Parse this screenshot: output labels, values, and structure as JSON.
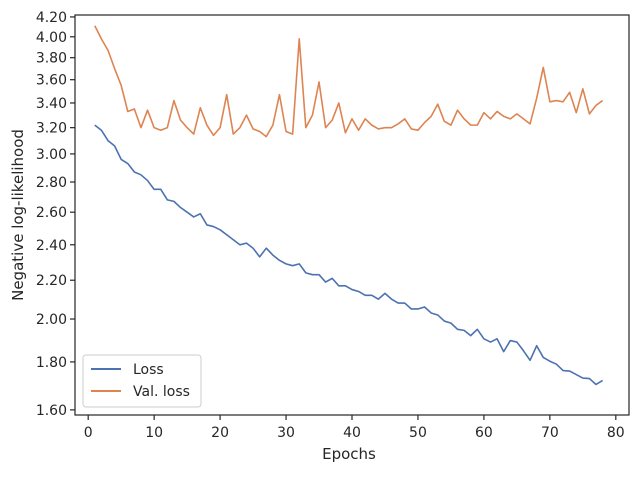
{
  "chart_data": {
    "type": "line",
    "xlabel": "Epochs",
    "ylabel": "Negative log-likelihood",
    "xlim": [
      -2,
      82
    ],
    "ylim": [
      1.58,
      4.22
    ],
    "y_scale": "log",
    "grid": false,
    "legend_position": "lower-left",
    "x_ticks": [
      0,
      10,
      20,
      30,
      40,
      50,
      60,
      70,
      80
    ],
    "x_tick_labels": [
      "0",
      "10",
      "20",
      "30",
      "40",
      "50",
      "60",
      "70",
      "80"
    ],
    "y_ticks": [
      1.6,
      1.8,
      2.0,
      2.2,
      2.4,
      2.6,
      2.8,
      3.0,
      3.2,
      3.4,
      3.6,
      3.8,
      4.0,
      4.2
    ],
    "y_tick_labels": [
      "1.60",
      "1.80",
      "2.00",
      "2.20",
      "2.40",
      "2.60",
      "2.80",
      "3.00",
      "3.20",
      "3.40",
      "3.60",
      "3.80",
      "4.00",
      "4.20"
    ],
    "x": [
      1,
      2,
      3,
      4,
      5,
      6,
      7,
      8,
      9,
      10,
      11,
      12,
      13,
      14,
      15,
      16,
      17,
      18,
      19,
      20,
      21,
      22,
      23,
      24,
      25,
      26,
      27,
      28,
      29,
      30,
      31,
      32,
      33,
      34,
      35,
      36,
      37,
      38,
      39,
      40,
      41,
      42,
      43,
      44,
      45,
      46,
      47,
      48,
      49,
      50,
      51,
      52,
      53,
      54,
      55,
      56,
      57,
      58,
      59,
      60,
      61,
      62,
      63,
      64,
      65,
      66,
      67,
      68,
      69,
      70,
      71,
      72,
      73,
      74,
      75,
      76,
      77,
      78
    ],
    "series": [
      {
        "name": "Loss",
        "color": "#4c72b0",
        "values": [
          3.22,
          3.18,
          3.1,
          3.06,
          2.96,
          2.93,
          2.87,
          2.85,
          2.81,
          2.75,
          2.75,
          2.68,
          2.67,
          2.63,
          2.6,
          2.57,
          2.59,
          2.52,
          2.51,
          2.49,
          2.46,
          2.43,
          2.4,
          2.41,
          2.38,
          2.33,
          2.38,
          2.34,
          2.31,
          2.29,
          2.28,
          2.29,
          2.24,
          2.23,
          2.23,
          2.19,
          2.21,
          2.17,
          2.17,
          2.15,
          2.14,
          2.12,
          2.12,
          2.1,
          2.13,
          2.1,
          2.08,
          2.08,
          2.05,
          2.05,
          2.06,
          2.03,
          2.02,
          1.99,
          1.98,
          1.95,
          1.945,
          1.92,
          1.95,
          1.905,
          1.89,
          1.905,
          1.846,
          1.897,
          1.89,
          1.85,
          1.807,
          1.873,
          1.82,
          1.803,
          1.79,
          1.762,
          1.76,
          1.745,
          1.73,
          1.728,
          1.703,
          1.72
        ]
      },
      {
        "name": "Val. loss",
        "color": "#dd8452",
        "values": [
          4.11,
          3.98,
          3.87,
          3.7,
          3.55,
          3.33,
          3.35,
          3.2,
          3.34,
          3.2,
          3.18,
          3.2,
          3.42,
          3.26,
          3.2,
          3.15,
          3.36,
          3.22,
          3.14,
          3.2,
          3.47,
          3.15,
          3.2,
          3.3,
          3.19,
          3.17,
          3.13,
          3.22,
          3.47,
          3.17,
          3.15,
          3.98,
          3.2,
          3.3,
          3.58,
          3.2,
          3.26,
          3.4,
          3.16,
          3.27,
          3.18,
          3.27,
          3.22,
          3.19,
          3.2,
          3.2,
          3.23,
          3.27,
          3.19,
          3.18,
          3.24,
          3.29,
          3.39,
          3.25,
          3.22,
          3.34,
          3.27,
          3.22,
          3.22,
          3.32,
          3.27,
          3.33,
          3.29,
          3.27,
          3.31,
          3.27,
          3.23,
          3.44,
          3.71,
          3.41,
          3.42,
          3.41,
          3.49,
          3.32,
          3.52,
          3.31,
          3.38,
          3.42
        ]
      }
    ]
  }
}
